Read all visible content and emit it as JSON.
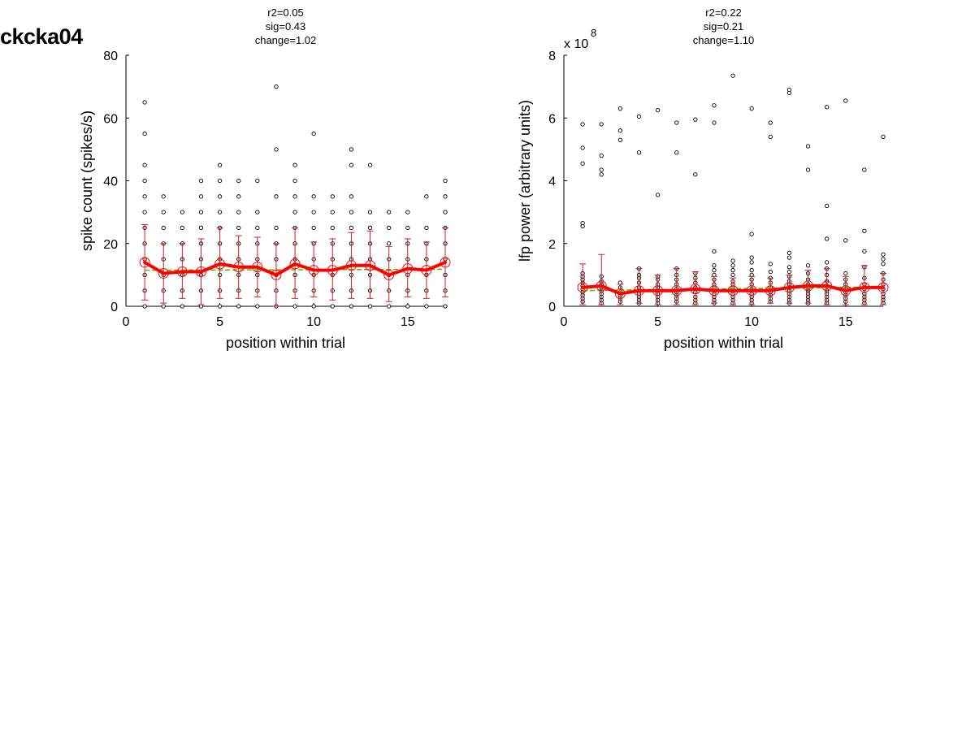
{
  "figure": {
    "title": "ckcka04"
  },
  "colors": {
    "mean_line": "#ff0000",
    "errorbar": "#cc2020",
    "fit_line": "#66aa00",
    "points": "#000000"
  },
  "chart_data": [
    {
      "type": "scatter",
      "stats": [
        "r2=0.05",
        "sig=0.43",
        "change=1.02"
      ],
      "xlabel": "position within trial",
      "ylabel": "spike count (spikes/s)",
      "xlim": [
        0,
        17
      ],
      "ylim": [
        0,
        80
      ],
      "xticks": [
        "0",
        "5",
        "10",
        "15"
      ],
      "yticks": [
        "0",
        "20",
        "40",
        "60",
        "80"
      ],
      "exponent": null,
      "grid": false,
      "x": [
        1,
        2,
        3,
        4,
        5,
        6,
        7,
        8,
        9,
        10,
        11,
        12,
        13,
        14,
        15,
        16,
        17
      ],
      "points": [
        [
          0,
          5,
          10,
          15,
          20,
          25,
          30,
          35,
          40,
          45,
          55,
          65
        ],
        [
          0,
          5,
          10,
          15,
          20,
          25,
          30,
          35
        ],
        [
          0,
          5,
          10,
          15,
          20,
          25,
          30
        ],
        [
          0,
          5,
          10,
          15,
          20,
          25,
          30,
          35,
          40
        ],
        [
          0,
          5,
          10,
          15,
          20,
          25,
          30,
          35,
          40,
          45
        ],
        [
          0,
          5,
          10,
          15,
          20,
          25,
          30,
          35,
          40
        ],
        [
          0,
          5,
          10,
          15,
          20,
          25,
          30,
          40
        ],
        [
          0,
          5,
          10,
          15,
          20,
          25,
          35,
          50,
          70
        ],
        [
          0,
          5,
          10,
          15,
          20,
          25,
          30,
          35,
          40,
          45
        ],
        [
          0,
          5,
          10,
          15,
          20,
          25,
          30,
          35,
          55
        ],
        [
          0,
          5,
          10,
          15,
          20,
          25,
          30,
          35
        ],
        [
          0,
          5,
          10,
          15,
          20,
          25,
          30,
          35,
          45,
          50
        ],
        [
          0,
          5,
          10,
          15,
          20,
          25,
          30,
          45
        ],
        [
          0,
          5,
          10,
          15,
          20,
          25,
          30
        ],
        [
          0,
          5,
          10,
          15,
          20,
          25,
          30
        ],
        [
          0,
          5,
          10,
          15,
          20,
          25,
          35
        ],
        [
          0,
          5,
          10,
          15,
          20,
          25,
          30,
          35,
          40
        ]
      ],
      "mean": [
        14,
        10.5,
        11,
        11,
        13.5,
        12.5,
        12.5,
        10,
        13.5,
        11.5,
        11.5,
        13,
        13,
        10,
        12,
        11.5,
        14
      ],
      "error_low": [
        2,
        1,
        2.5,
        0.5,
        2.5,
        2.5,
        3,
        0,
        2.5,
        3,
        2,
        2.5,
        2.5,
        1.5,
        3,
        2.5,
        3
      ],
      "error_high": [
        26,
        20,
        20,
        21.5,
        25,
        22.5,
        22,
        20,
        25,
        20.5,
        21.5,
        23.5,
        24,
        19,
        21.5,
        20.5,
        25
      ],
      "fit": [
        11.5,
        11.8
      ]
    },
    {
      "type": "scatter",
      "stats": [
        "r2=0.22",
        "sig=0.21",
        "change=1.10"
      ],
      "xlabel": "position within trial",
      "ylabel": "lfp power (arbitrary units)",
      "xlim": [
        0,
        17
      ],
      "ylim": [
        0,
        8
      ],
      "xticks": [
        "0",
        "5",
        "10",
        "15"
      ],
      "yticks": [
        "0",
        "2",
        "4",
        "6",
        "8"
      ],
      "exponent": {
        "base": "x 10",
        "power": "8"
      },
      "grid": false,
      "x": [
        1,
        2,
        3,
        4,
        5,
        6,
        7,
        8,
        9,
        10,
        11,
        12,
        13,
        14,
        15,
        16,
        17
      ],
      "points": [
        [
          0.15,
          0.25,
          0.35,
          0.45,
          0.55,
          0.65,
          0.75,
          0.85,
          0.95,
          1.05,
          2.55,
          2.65,
          4.55,
          5.05,
          5.8
        ],
        [
          0.1,
          0.2,
          0.3,
          0.4,
          0.5,
          0.6,
          0.7,
          0.8,
          0.95,
          4.2,
          4.35,
          4.8,
          5.8
        ],
        [
          0.15,
          0.25,
          0.35,
          0.45,
          0.6,
          0.75,
          5.3,
          5.6,
          6.3
        ],
        [
          0.1,
          0.2,
          0.3,
          0.4,
          0.5,
          0.6,
          0.75,
          0.9,
          1.0,
          1.2,
          4.9,
          6.05
        ],
        [
          0.1,
          0.2,
          0.3,
          0.4,
          0.5,
          0.6,
          0.7,
          0.85,
          0.95,
          3.55,
          6.25
        ],
        [
          0.15,
          0.25,
          0.35,
          0.45,
          0.55,
          0.7,
          0.85,
          1.0,
          1.2,
          4.9,
          5.85
        ],
        [
          0.1,
          0.2,
          0.3,
          0.45,
          0.6,
          0.75,
          0.9,
          1.05,
          4.2,
          5.95
        ],
        [
          0.1,
          0.2,
          0.3,
          0.4,
          0.5,
          0.6,
          0.7,
          0.85,
          1.0,
          1.15,
          1.3,
          1.75,
          5.85,
          6.4
        ],
        [
          0.1,
          0.2,
          0.3,
          0.4,
          0.5,
          0.6,
          0.7,
          0.8,
          1.0,
          1.15,
          1.3,
          1.45,
          7.35
        ],
        [
          0.1,
          0.2,
          0.3,
          0.4,
          0.55,
          0.7,
          0.85,
          1.0,
          1.15,
          1.4,
          1.55,
          2.3,
          6.3
        ],
        [
          0.15,
          0.25,
          0.35,
          0.45,
          0.6,
          0.75,
          0.9,
          1.1,
          1.35,
          5.4,
          5.85
        ],
        [
          0.1,
          0.2,
          0.3,
          0.4,
          0.5,
          0.6,
          0.7,
          0.8,
          0.95,
          1.1,
          1.25,
          1.55,
          1.7,
          6.8,
          6.9
        ],
        [
          0.1,
          0.2,
          0.3,
          0.4,
          0.5,
          0.6,
          0.7,
          0.85,
          1.05,
          1.3,
          4.35,
          5.1
        ],
        [
          0.1,
          0.2,
          0.3,
          0.4,
          0.5,
          0.65,
          0.8,
          1.0,
          1.2,
          1.4,
          2.15,
          3.2,
          6.35
        ],
        [
          0.15,
          0.25,
          0.35,
          0.45,
          0.55,
          0.7,
          0.85,
          1.05,
          2.1,
          6.55
        ],
        [
          0.1,
          0.2,
          0.3,
          0.4,
          0.55,
          0.7,
          0.9,
          1.25,
          1.75,
          2.4,
          4.35
        ],
        [
          0.1,
          0.2,
          0.3,
          0.4,
          0.55,
          0.7,
          0.85,
          1.05,
          1.35,
          1.5,
          1.65,
          5.4
        ]
      ],
      "mean": [
        0.6,
        0.65,
        0.4,
        0.5,
        0.5,
        0.5,
        0.55,
        0.5,
        0.5,
        0.5,
        0.5,
        0.6,
        0.65,
        0.65,
        0.5,
        0.6,
        0.6
      ],
      "error_low": [
        0.05,
        0.05,
        0.05,
        0.1,
        0.05,
        0.05,
        0.05,
        0.1,
        0.05,
        0.05,
        0.1,
        0.1,
        0.1,
        0.05,
        0.05,
        0.05,
        0.05
      ],
      "error_high": [
        1.35,
        1.65,
        0.7,
        1.2,
        1.0,
        1.2,
        1.1,
        0.95,
        0.9,
        0.95,
        0.9,
        1.0,
        1.15,
        1.2,
        0.95,
        1.3,
        1.05
      ],
      "fit": [
        0.5,
        0.62
      ]
    }
  ]
}
